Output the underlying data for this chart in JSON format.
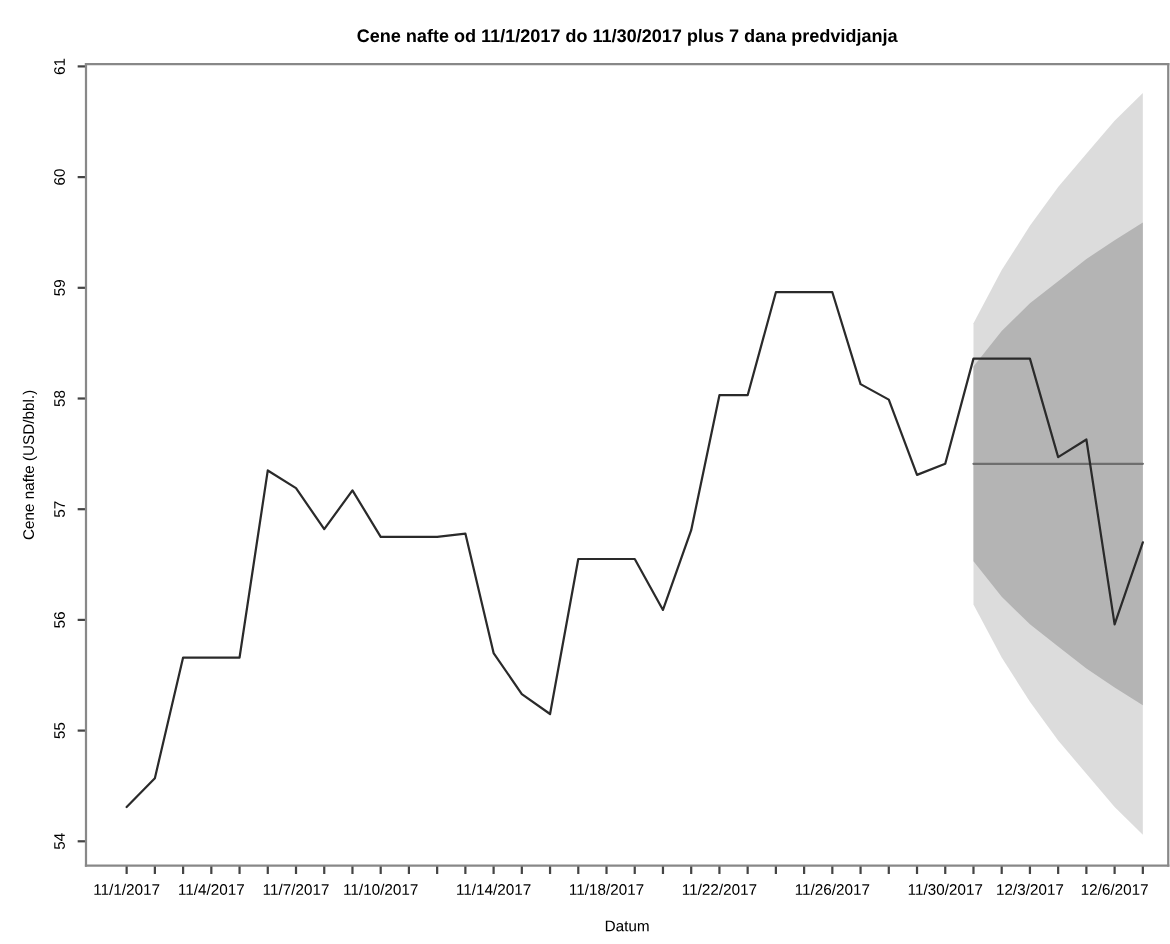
{
  "chart_data": {
    "type": "line",
    "title": "Cene nafte od 11/1/2017 do 11/30/2017 plus 7 dana predvidjanja",
    "xlabel": "Datum",
    "ylabel": "Cene nafte (USD/bbl.)",
    "categories": [
      "11/1/2017",
      null,
      null,
      "11/4/2017",
      null,
      null,
      "11/7/2017",
      null,
      null,
      "11/10/2017",
      null,
      null,
      null,
      "11/14/2017",
      null,
      null,
      null,
      "11/18/2017",
      null,
      null,
      null,
      "11/22/2017",
      null,
      null,
      null,
      "11/26/2017",
      null,
      null,
      null,
      "11/30/2017",
      null,
      null,
      "12/3/2017",
      null,
      null,
      "12/6/2017",
      null
    ],
    "series": [
      {
        "color": "#2a2a2a",
        "values": [
          54.31,
          54.57,
          55.66,
          55.66,
          55.66,
          57.35,
          57.19,
          56.82,
          57.17,
          56.75,
          56.75,
          56.75,
          56.78,
          55.7,
          55.33,
          55.15,
          56.55,
          56.55,
          56.55,
          56.09,
          56.81,
          58.03,
          58.03,
          58.96,
          58.96,
          58.96,
          58.13,
          57.99,
          57.31,
          57.41,
          58.36,
          58.36,
          58.36,
          57.47,
          57.63,
          55.96,
          56.7
        ]
      },
      {
        "color": "#dcdcdc",
        "values": [
          null,
          null,
          null,
          null,
          null,
          null,
          null,
          null,
          null,
          null,
          null,
          null,
          null,
          null,
          null,
          null,
          null,
          null,
          null,
          null,
          null,
          null,
          null,
          null,
          null,
          null,
          null,
          null,
          null,
          null,
          null,
          null,
          null,
          null,
          null,
          null,
          null
        ],
        "lower": [
          null,
          null,
          null,
          null,
          null,
          null,
          null,
          null,
          null,
          null,
          null,
          null,
          null,
          null,
          null,
          null,
          null,
          null,
          null,
          null,
          null,
          null,
          null,
          null,
          null,
          null,
          null,
          null,
          null,
          null,
          56.14,
          55.66,
          55.26,
          54.91,
          54.61,
          54.31,
          54.06
        ],
        "upper": [
          null,
          null,
          null,
          null,
          null,
          null,
          null,
          null,
          null,
          null,
          null,
          null,
          null,
          null,
          null,
          null,
          null,
          null,
          null,
          null,
          null,
          null,
          null,
          null,
          null,
          null,
          null,
          null,
          null,
          null,
          58.68,
          59.16,
          59.56,
          59.91,
          60.21,
          60.51,
          60.76
        ]
      },
      {
        "color": "#b4b4b4",
        "values": [
          null,
          null,
          null,
          null,
          null,
          null,
          null,
          null,
          null,
          null,
          null,
          null,
          null,
          null,
          null,
          null,
          null,
          null,
          null,
          null,
          null,
          null,
          null,
          null,
          null,
          null,
          null,
          null,
          null,
          null,
          null,
          null,
          null,
          null,
          null,
          null,
          null
        ],
        "lower": [
          null,
          null,
          null,
          null,
          null,
          null,
          null,
          null,
          null,
          null,
          null,
          null,
          null,
          null,
          null,
          null,
          null,
          null,
          null,
          null,
          null,
          null,
          null,
          null,
          null,
          null,
          null,
          null,
          null,
          null,
          56.53,
          56.21,
          55.96,
          55.76,
          55.56,
          55.39,
          55.23
        ],
        "upper": [
          null,
          null,
          null,
          null,
          null,
          null,
          null,
          null,
          null,
          null,
          null,
          null,
          null,
          null,
          null,
          null,
          null,
          null,
          null,
          null,
          null,
          null,
          null,
          null,
          null,
          null,
          null,
          null,
          null,
          null,
          58.29,
          58.61,
          58.86,
          59.06,
          59.26,
          59.43,
          59.59
        ]
      },
      {
        "color": "#6e6e6e",
        "values": [
          null,
          null,
          null,
          null,
          null,
          null,
          null,
          null,
          null,
          null,
          null,
          null,
          null,
          null,
          null,
          null,
          null,
          null,
          null,
          null,
          null,
          null,
          null,
          null,
          null,
          null,
          null,
          null,
          null,
          null,
          57.41,
          57.41,
          57.41,
          57.41,
          57.41,
          57.41,
          57.41
        ]
      }
    ],
    "ylim": [
      53.78,
      61.02
    ],
    "yticks": [
      54,
      55,
      56,
      57,
      58,
      59,
      60,
      61
    ]
  }
}
